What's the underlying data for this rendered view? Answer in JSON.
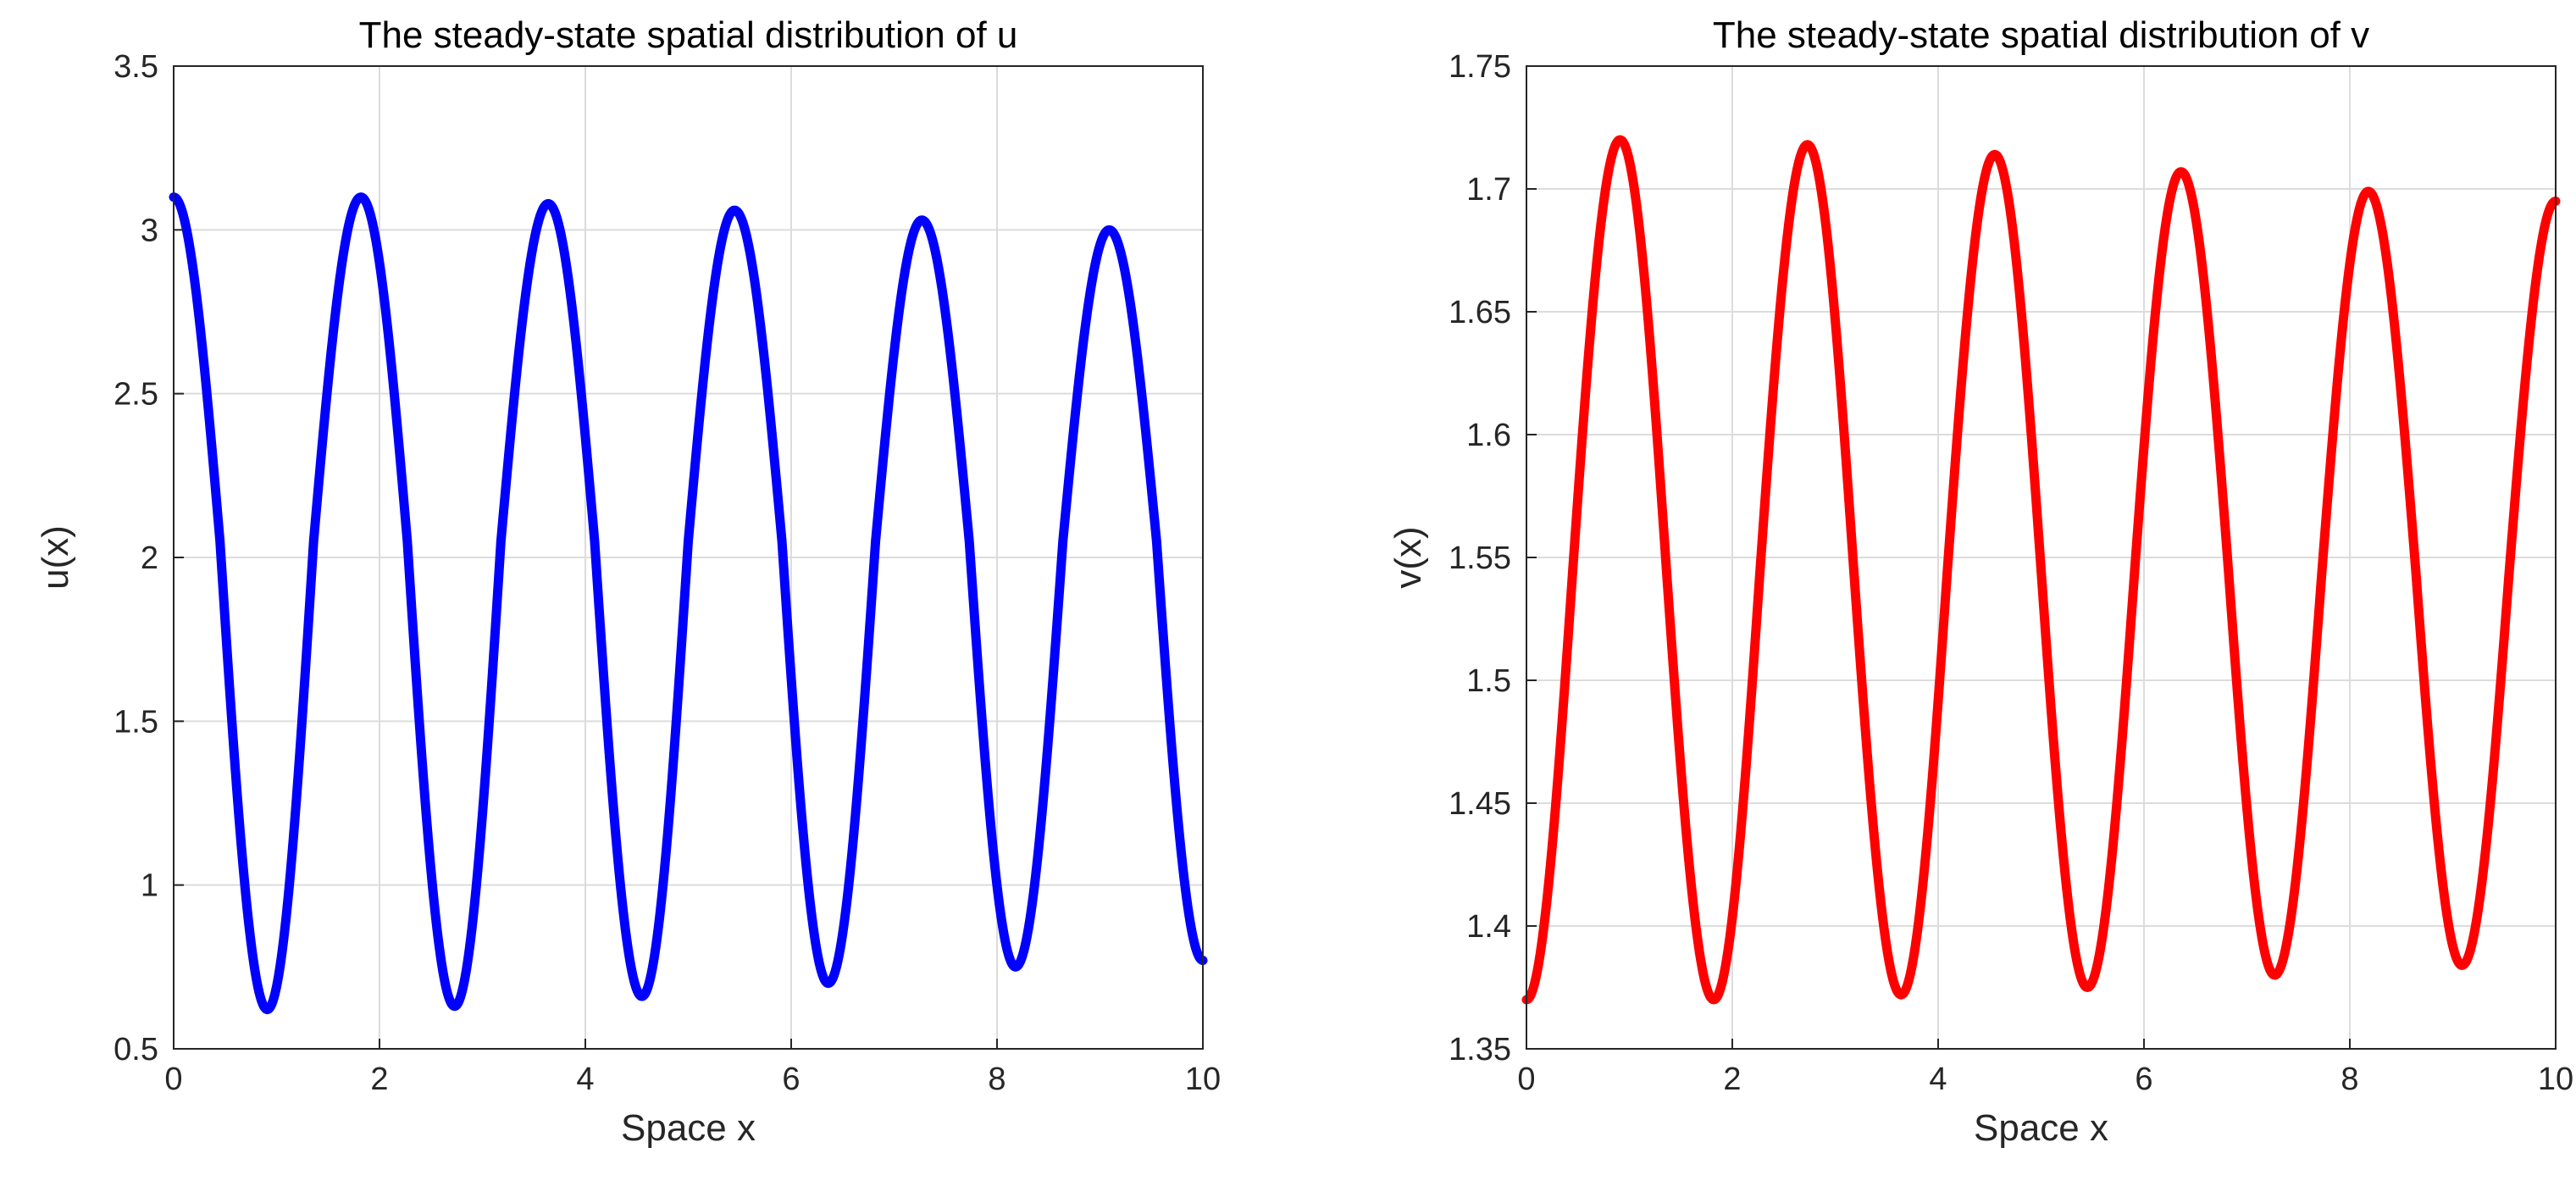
{
  "chart_data": [
    {
      "type": "line",
      "title": "The steady-state spatial distribution of u",
      "xlabel": "Space x",
      "ylabel": "u(x)",
      "xlim": [
        0,
        10
      ],
      "ylim": [
        0.5,
        3.5
      ],
      "grid": true,
      "xticks": [
        0,
        2,
        4,
        6,
        8,
        10
      ],
      "xtick_labels": [
        "0",
        "2",
        "4",
        "6",
        "8",
        "10"
      ],
      "yticks": [
        0.5,
        1,
        1.5,
        2,
        2.5,
        3,
        3.5
      ],
      "ytick_labels": [
        "0.5",
        "1",
        "1.5",
        "2",
        "2.5",
        "3",
        "3.5"
      ],
      "series": [
        {
          "color": "#0000ff",
          "x": [
            0,
            0.45,
            0.91,
            1.36,
            1.82,
            2.27,
            2.73,
            3.18,
            3.64,
            4.09,
            4.55,
            5.0,
            5.45,
            5.91,
            6.36,
            6.82,
            7.27,
            7.73,
            8.18,
            8.64,
            9.09,
            9.55,
            10.0
          ],
          "y": [
            3.1,
            2.05,
            0.62,
            2.05,
            3.1,
            2.05,
            0.63,
            2.05,
            3.08,
            2.05,
            0.66,
            2.05,
            3.06,
            2.05,
            0.7,
            2.05,
            3.03,
            2.05,
            0.75,
            2.05,
            3.0,
            2.05,
            0.77
          ]
        }
      ]
    },
    {
      "type": "line",
      "title": "The steady-state spatial distribution of v",
      "xlabel": "Space x",
      "ylabel": "v(x)",
      "xlim": [
        0,
        10
      ],
      "ylim": [
        1.35,
        1.75
      ],
      "grid": true,
      "xticks": [
        0,
        2,
        4,
        6,
        8,
        10
      ],
      "xtick_labels": [
        "0",
        "2",
        "4",
        "6",
        "8",
        "10"
      ],
      "yticks": [
        1.35,
        1.4,
        1.45,
        1.5,
        1.55,
        1.6,
        1.65,
        1.7,
        1.75
      ],
      "ytick_labels": [
        "1.35",
        "1.4",
        "1.45",
        "1.5",
        "1.55",
        "1.6",
        "1.65",
        "1.7",
        "1.75"
      ],
      "series": [
        {
          "color": "#ff0000",
          "x": [
            0,
            0.45,
            0.91,
            1.36,
            1.82,
            2.27,
            2.73,
            3.18,
            3.64,
            4.09,
            4.55,
            5.0,
            5.45,
            5.91,
            6.36,
            6.82,
            7.27,
            7.73,
            8.18,
            8.64,
            9.09,
            9.55,
            10.0
          ],
          "y": [
            1.37,
            1.545,
            1.72,
            1.545,
            1.37,
            1.545,
            1.718,
            1.545,
            1.372,
            1.545,
            1.714,
            1.545,
            1.375,
            1.545,
            1.707,
            1.545,
            1.38,
            1.545,
            1.699,
            1.545,
            1.384,
            1.545,
            1.695
          ]
        }
      ]
    }
  ]
}
